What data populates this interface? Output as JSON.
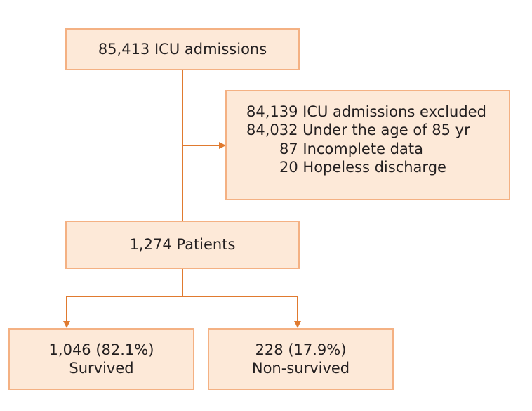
{
  "boxes": {
    "admissions": "85,413 ICU admissions",
    "excluded": {
      "title": "84,139 ICU admissions excluded",
      "reasons": [
        "84,032 Under the age of 85 yr",
        "87 Incomplete data",
        "20 Hopeless discharge"
      ]
    },
    "patients": "1,274 Patients",
    "survived": {
      "count": "1,046 (82.1%)",
      "label": "Survived"
    },
    "non_survived": {
      "count": "228 (17.9%)",
      "label": "Non-survived"
    }
  },
  "colors": {
    "box_fill": "#fde9d8",
    "box_border": "#f4b183",
    "arrow": "#e07a2f",
    "text": "#231f20"
  }
}
